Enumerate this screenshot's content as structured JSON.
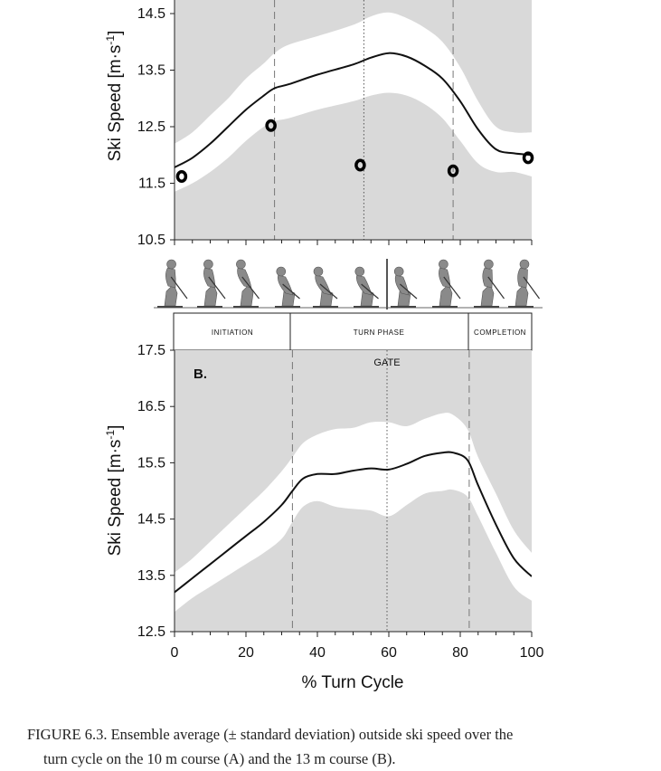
{
  "chart_data": [
    {
      "panel": "A",
      "type": "line",
      "ylabel": "Ski Speed [m·s",
      "ylabel_sup": "-1",
      "ylabel_close": "]",
      "ylim": [
        10.5,
        14.5
      ],
      "yticks": [
        "14.5",
        "13.5",
        "12.5",
        "11.5",
        "10.5"
      ],
      "ytick_values": [
        14.5,
        13.5,
        12.5,
        11.5,
        10.5
      ],
      "xlim": [
        0,
        100
      ],
      "x": [
        0,
        5,
        10,
        15,
        20,
        25,
        28,
        32,
        40,
        50,
        55,
        60,
        65,
        70,
        75,
        80,
        85,
        90,
        95,
        100
      ],
      "mean": [
        11.78,
        11.95,
        12.2,
        12.5,
        12.8,
        13.05,
        13.18,
        13.25,
        13.42,
        13.6,
        13.72,
        13.8,
        13.74,
        13.58,
        13.35,
        12.95,
        12.45,
        12.1,
        12.03,
        12.0
      ],
      "upper": [
        12.2,
        12.4,
        12.7,
        13.0,
        13.35,
        13.62,
        13.8,
        13.95,
        14.1,
        14.3,
        14.45,
        14.52,
        14.42,
        14.25,
        14.0,
        13.55,
        12.95,
        12.5,
        12.4,
        12.4
      ],
      "lower": [
        11.35,
        11.5,
        11.7,
        11.95,
        12.25,
        12.5,
        12.6,
        12.65,
        12.8,
        12.95,
        13.05,
        13.1,
        13.05,
        12.9,
        12.65,
        12.25,
        11.85,
        11.7,
        11.7,
        11.62
      ],
      "markers": [
        {
          "x": 2,
          "y": 11.62
        },
        {
          "x": 27,
          "y": 12.52
        },
        {
          "x": 52,
          "y": 11.82
        },
        {
          "x": 78,
          "y": 11.72
        },
        {
          "x": 99,
          "y": 11.95
        }
      ],
      "vlines_dashed": [
        28,
        78
      ],
      "vline_dotted": 53
    },
    {
      "panel": "B",
      "type": "line",
      "label": "B.",
      "ylabel": "Ski Speed [m·s",
      "ylabel_sup": "-1",
      "ylabel_close": "]",
      "ylim": [
        12.5,
        17.5
      ],
      "yticks": [
        "17.5",
        "16.5",
        "15.5",
        "14.5",
        "13.5",
        "12.5"
      ],
      "ytick_values": [
        17.5,
        16.5,
        15.5,
        14.5,
        13.5,
        12.5
      ],
      "xlim": [
        0,
        100
      ],
      "xticks": [
        "0",
        "20",
        "40",
        "60",
        "80",
        "100"
      ],
      "xtick_values": [
        0,
        20,
        40,
        60,
        80,
        100
      ],
      "xlabel": "% Turn Cycle",
      "x": [
        0,
        5,
        10,
        15,
        20,
        25,
        30,
        33,
        36,
        40,
        45,
        50,
        55,
        60,
        65,
        70,
        75,
        78,
        82,
        85,
        90,
        95,
        100
      ],
      "mean": [
        13.2,
        13.45,
        13.7,
        13.95,
        14.2,
        14.45,
        14.75,
        15.0,
        15.22,
        15.3,
        15.3,
        15.36,
        15.4,
        15.38,
        15.48,
        15.62,
        15.68,
        15.68,
        15.55,
        15.1,
        14.4,
        13.8,
        13.48
      ],
      "upper": [
        13.55,
        13.8,
        14.1,
        14.4,
        14.7,
        15.0,
        15.35,
        15.6,
        15.85,
        16.0,
        16.1,
        16.12,
        16.22,
        16.22,
        16.15,
        16.28,
        16.38,
        16.35,
        16.1,
        15.6,
        14.95,
        14.3,
        13.9
      ],
      "lower": [
        12.85,
        13.1,
        13.3,
        13.5,
        13.7,
        13.9,
        14.15,
        14.45,
        14.72,
        14.82,
        14.72,
        14.68,
        14.65,
        14.55,
        14.75,
        14.95,
        15.0,
        15.02,
        14.9,
        14.55,
        13.9,
        13.3,
        13.05
      ],
      "vlines_dashed": [
        33,
        82
      ],
      "vline_dotted": 60,
      "gate_label": "GATE"
    }
  ],
  "phases": [
    {
      "label": "INITIATION"
    },
    {
      "label": "TURN PHASE"
    },
    {
      "label": "COMPLETION"
    }
  ],
  "colors": {
    "background": "#d9d9d9",
    "band": "#ffffff",
    "line": "#111111"
  },
  "caption": {
    "line1": "FIGURE 6.3.  Ensemble average (± standard deviation) outside ski speed over the",
    "line2": "turn cycle on the 10 m course (A) and the 13 m course (B)."
  }
}
